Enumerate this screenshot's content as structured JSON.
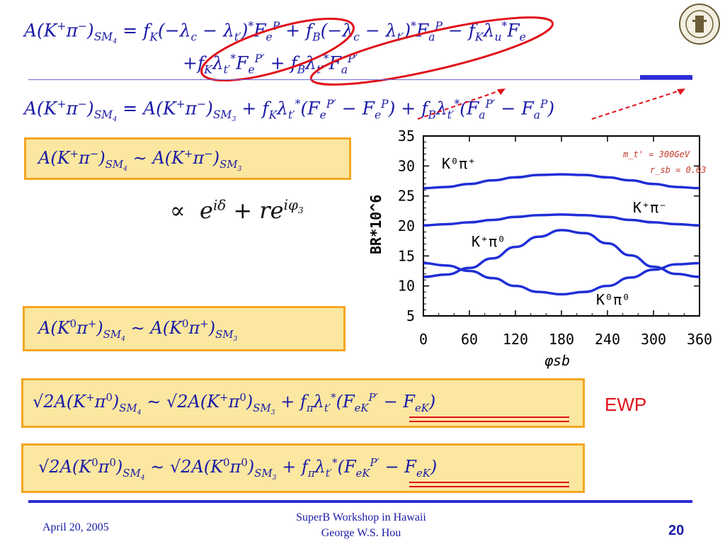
{
  "equations": {
    "eq1_line1": "A(K⁺π⁻)_SM4 = f_K(−λ_c − λ_t')* F_e^P + f_B(−λ_c − λ_t')* F_a^P − f_K λ_u* F_e",
    "eq1_line2": "+ f_K λ_t'* F_e^P' + f_B λ_t'* F_a^P'",
    "eq2": "A(K⁺π⁻)_SM4 = A(K⁺π⁻)_SM3 + f_K λ_t'*(F_e^P' − F_e^P) + f_B λ_t'*(F_a^P' − F_a^P)",
    "box1": "A(K⁺π⁻)_SM4 ~ A(K⁺π⁻)_SM3",
    "proportional": "∝ e^{iδ} + r e^{iφ3}",
    "box2": "A(K⁰π⁺)_SM4 ~ A(K⁰π⁺)_SM3",
    "box3": "√2A(K⁺π⁰)_SM4 ~ √2A(K⁺π⁰)_SM3 + f_π λ_t'*(F_eK^P' − F_eK)",
    "box4": "√2A(K⁰π⁰)_SM4 ~ √2A(K⁰π⁰)_SM3 + f_π λ_t'*(F_eK^P' − F_eK)"
  },
  "ewp_label": "EWP",
  "footer": {
    "date": "April 20, 2005",
    "title_line1": "SuperB Workshop in Hawaii",
    "title_line2": "George W.S. Hou",
    "page": "20"
  },
  "colors": {
    "text": "#1a1aa6",
    "box_border": "#f5a623",
    "box_fill": "#fbe7a0",
    "ellipse": "#e0101a",
    "curve": "#1f2fd6"
  },
  "chart_data": {
    "type": "line",
    "xlabel": "φsb",
    "ylabel": "BR*10^6",
    "xlim": [
      0,
      360
    ],
    "ylim": [
      5,
      35
    ],
    "xticks": [
      "0",
      "60",
      "120",
      "180",
      "240",
      "300",
      "360"
    ],
    "yticks": [
      "5",
      "10",
      "15",
      "20",
      "25",
      "30",
      "35"
    ],
    "annotations": [
      "m_t' = 300GeV",
      "r_sb = 0.03"
    ],
    "x": [
      0,
      30,
      60,
      90,
      120,
      150,
      180,
      210,
      240,
      270,
      300,
      330,
      360
    ],
    "series": [
      {
        "name": "K⁰π⁺",
        "values": [
          26.3,
          26.5,
          27.0,
          27.6,
          28.1,
          28.5,
          28.6,
          28.5,
          28.1,
          27.6,
          27.0,
          26.5,
          26.3
        ]
      },
      {
        "name": "K⁺π⁻",
        "values": [
          20.1,
          20.3,
          20.6,
          21.0,
          21.5,
          21.8,
          21.9,
          21.8,
          21.5,
          21.0,
          20.6,
          20.3,
          20.1
        ]
      },
      {
        "name": "K⁺π⁰",
        "values": [
          11.5,
          11.9,
          13.0,
          14.6,
          16.5,
          18.2,
          19.3,
          18.8,
          17.1,
          15.1,
          13.2,
          12.0,
          11.5
        ]
      },
      {
        "name": "K⁰π⁰",
        "values": [
          13.8,
          13.4,
          12.5,
          11.3,
          10.0,
          9.0,
          8.6,
          9.0,
          10.0,
          11.4,
          12.7,
          13.6,
          13.8
        ]
      }
    ]
  }
}
